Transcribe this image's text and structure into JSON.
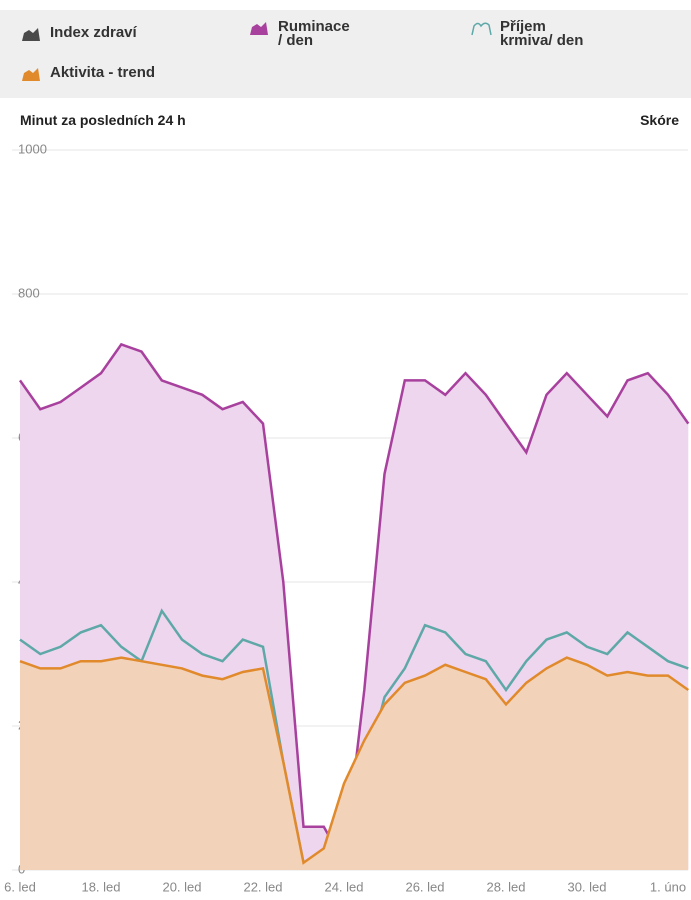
{
  "chart_data": {
    "type": "area",
    "y_label_left": "Minut za posledních 24 h",
    "y_label_right": "Skóre",
    "categories": [
      "6. led",
      null,
      null,
      null,
      "18. led",
      null,
      null,
      null,
      "20. led",
      null,
      null,
      null,
      "22. led",
      null,
      null,
      null,
      "24. led",
      null,
      null,
      null,
      "26. led",
      null,
      null,
      null,
      "28. led",
      null,
      null,
      null,
      "30. led",
      null,
      null,
      null,
      "1. úno",
      null
    ],
    "ylim": [
      0,
      1000
    ],
    "yticks": [
      0,
      200,
      400,
      600,
      800,
      1000
    ],
    "grid": true,
    "series": [
      {
        "name": "Index zdraví",
        "color": "#4a4a4a",
        "style": "area",
        "values": [
          null,
          null,
          null,
          null,
          null,
          null,
          null,
          null,
          null,
          null,
          null,
          null,
          null,
          null,
          null,
          null,
          null,
          null,
          null,
          null,
          null,
          null,
          null,
          null,
          null,
          null,
          null,
          null,
          null,
          null,
          null,
          null,
          null,
          null
        ]
      },
      {
        "name": "Ruminace / den",
        "color": "#a8409e",
        "fill": "#eed6ee",
        "style": "area",
        "values": [
          680,
          640,
          650,
          670,
          690,
          730,
          720,
          680,
          670,
          660,
          640,
          650,
          620,
          400,
          60,
          60,
          10,
          250,
          550,
          680,
          680,
          660,
          690,
          660,
          620,
          580,
          660,
          690,
          660,
          630,
          680,
          690,
          660,
          620
        ]
      },
      {
        "name": "Příjem krmiva/ den",
        "color": "#5fa8a8",
        "style": "line",
        "values": [
          320,
          300,
          310,
          330,
          340,
          310,
          290,
          360,
          320,
          300,
          290,
          320,
          310,
          150,
          10,
          20,
          50,
          130,
          240,
          280,
          340,
          330,
          300,
          290,
          250,
          290,
          320,
          330,
          310,
          300,
          330,
          310,
          290,
          280
        ]
      },
      {
        "name": "Aktivita - trend",
        "color": "#e08a2c",
        "fill": "#f3d2ba",
        "style": "area",
        "values": [
          290,
          280,
          280,
          290,
          290,
          295,
          290,
          285,
          280,
          270,
          265,
          275,
          280,
          150,
          10,
          30,
          120,
          180,
          230,
          260,
          270,
          285,
          275,
          265,
          230,
          260,
          280,
          295,
          285,
          270,
          275,
          270,
          270,
          250
        ]
      }
    ]
  }
}
